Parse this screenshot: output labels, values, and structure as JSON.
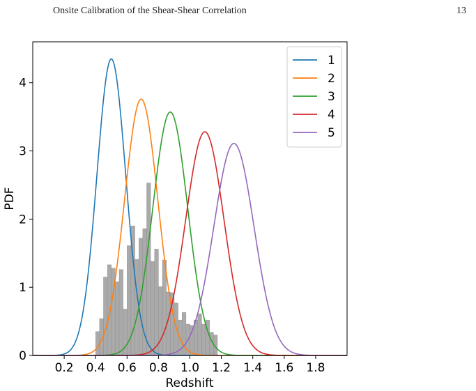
{
  "header": {
    "running_title": "Onsite Calibration of the Shear-Shear Correlation",
    "page_number": "13"
  },
  "chart_data": {
    "type": "line",
    "xlabel": "Redshift",
    "ylabel": "PDF",
    "xlim": [
      0.0,
      2.0
    ],
    "ylim": [
      0,
      4.6
    ],
    "x_ticks": [
      0.2,
      0.4,
      0.6,
      0.8,
      1.0,
      1.2,
      1.4,
      1.6,
      1.8
    ],
    "x_tick_labels": [
      "0.2",
      "0.4",
      "0.6",
      "0.8",
      "1.0",
      "1.2",
      "1.4",
      "1.6",
      "1.8"
    ],
    "y_ticks": [
      0,
      1,
      2,
      3,
      4
    ],
    "y_tick_labels": [
      "0",
      "1",
      "2",
      "3",
      "4"
    ],
    "grid": false,
    "legend_position": "top-right",
    "series": [
      {
        "name": "1",
        "type": "gaussian",
        "mean": 0.5,
        "sigma": 0.092,
        "peak": 4.35,
        "color": "#1f77b4"
      },
      {
        "name": "2",
        "type": "gaussian",
        "mean": 0.69,
        "sigma": 0.106,
        "peak": 3.76,
        "color": "#ff7f0e"
      },
      {
        "name": "3",
        "type": "gaussian",
        "mean": 0.875,
        "sigma": 0.111,
        "peak": 3.57,
        "color": "#2ca02c"
      },
      {
        "name": "4",
        "type": "gaussian",
        "mean": 1.095,
        "sigma": 0.122,
        "peak": 3.28,
        "color": "#d62728"
      },
      {
        "name": "5",
        "type": "gaussian",
        "mean": 1.28,
        "sigma": 0.128,
        "peak": 3.11,
        "color": "#9467bd"
      }
    ],
    "histogram": {
      "color": "#aaaaaa",
      "bin_start": 0.4,
      "bin_width": 0.025,
      "values": [
        0.35,
        0.54,
        1.15,
        1.33,
        1.28,
        1.08,
        1.26,
        0.68,
        1.61,
        1.9,
        1.41,
        1.72,
        1.86,
        2.53,
        1.38,
        1.56,
        1.01,
        1.4,
        0.93,
        0.92,
        0.77,
        0.52,
        0.63,
        0.46,
        0.44,
        0.52,
        0.61,
        0.46,
        0.52,
        0.34,
        0.3
      ]
    }
  }
}
